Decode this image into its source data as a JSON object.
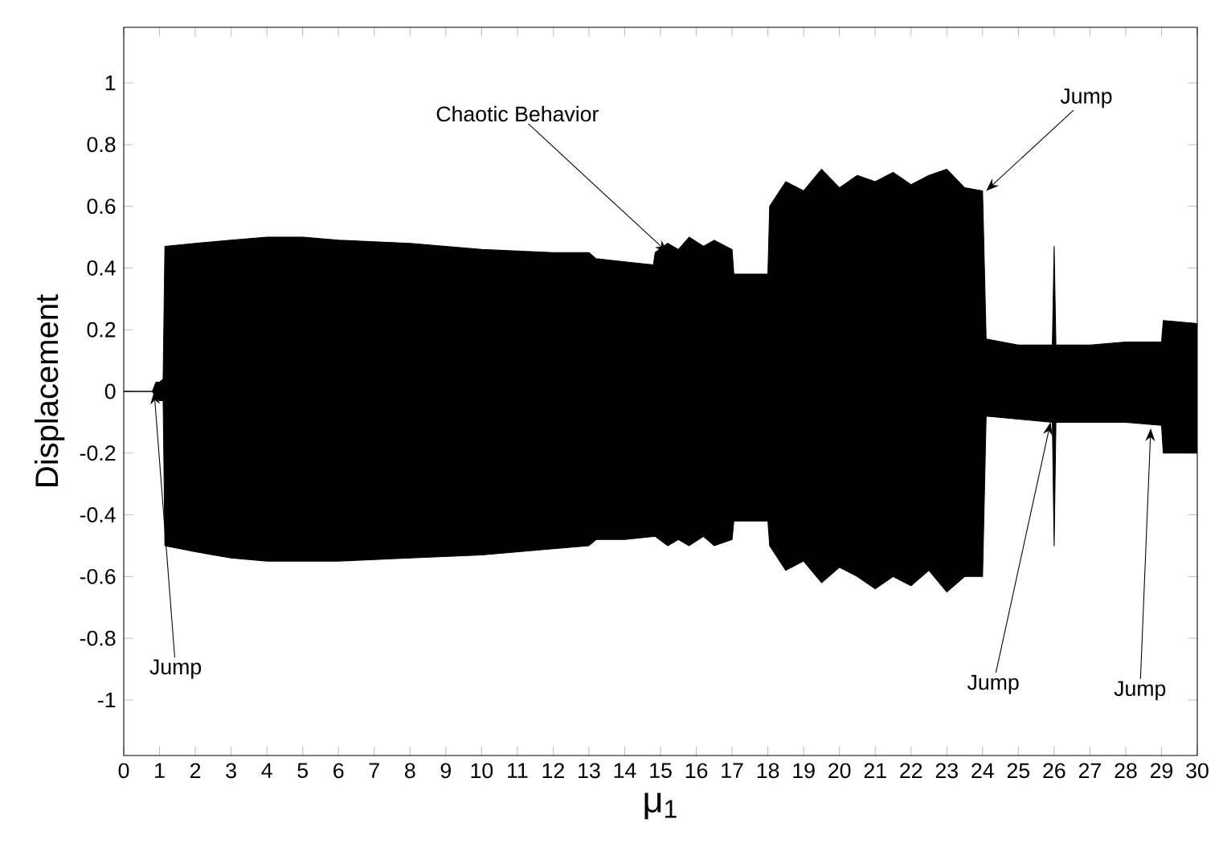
{
  "chart_data": {
    "type": "area",
    "xlabel": "μ$_{1}$",
    "ylabel": "Displacement",
    "xlim": [
      0,
      30
    ],
    "ylim": [
      -1.18,
      1.18
    ],
    "xticks": [
      0,
      1,
      2,
      3,
      4,
      5,
      6,
      7,
      8,
      9,
      10,
      11,
      12,
      13,
      14,
      15,
      16,
      17,
      18,
      19,
      20,
      21,
      22,
      23,
      24,
      25,
      26,
      27,
      28,
      29,
      30
    ],
    "yticks": [
      -1,
      -0.8,
      -0.6,
      -0.4,
      -0.2,
      0,
      0.2,
      0.4,
      0.6,
      0.8,
      1
    ],
    "grid": false,
    "series": [
      {
        "color": "#000000",
        "x": [
          0,
          0.8,
          0.9,
          1.0,
          1.1,
          1.15,
          2,
          3,
          4,
          5,
          6,
          8,
          10,
          12,
          13,
          13.2,
          14,
          14.8,
          14.85,
          15.2,
          15.5,
          15.8,
          16.2,
          16.5,
          17,
          17.05,
          18,
          18.05,
          18.5,
          19,
          19.5,
          20,
          20.5,
          21,
          21.5,
          22,
          22.5,
          23,
          23.5,
          24,
          24.1,
          25,
          25.95,
          26,
          26.05,
          27,
          28,
          29,
          29.05,
          30
        ],
        "values": [
          0,
          0,
          0.03,
          0.03,
          0.04,
          0.47,
          0.48,
          0.49,
          0.5,
          0.5,
          0.49,
          0.48,
          0.46,
          0.45,
          0.45,
          0.43,
          0.42,
          0.41,
          0.45,
          0.48,
          0.46,
          0.5,
          0.47,
          0.49,
          0.46,
          0.38,
          0.38,
          0.6,
          0.68,
          0.65,
          0.72,
          0.66,
          0.7,
          0.68,
          0.71,
          0.67,
          0.7,
          0.72,
          0.66,
          0.65,
          0.17,
          0.15,
          0.15,
          0.47,
          0.15,
          0.15,
          0.16,
          0.16,
          0.23,
          0.22
        ]
      },
      {
        "color": "#000000",
        "x": [
          0,
          0.8,
          0.9,
          1.0,
          1.1,
          1.15,
          2,
          3,
          4,
          5,
          6,
          8,
          10,
          12,
          13,
          13.2,
          14,
          14.8,
          14.85,
          15.2,
          15.5,
          15.8,
          16.2,
          16.5,
          17,
          17.05,
          18,
          18.05,
          18.5,
          19,
          19.5,
          20,
          20.5,
          21,
          21.5,
          22,
          22.5,
          23,
          23.5,
          24,
          24.1,
          25,
          25.95,
          26,
          26.05,
          27,
          28,
          29,
          29.05,
          30
        ],
        "values": [
          0,
          0,
          -0.02,
          -0.03,
          -0.03,
          -0.5,
          -0.52,
          -0.54,
          -0.55,
          -0.55,
          -0.55,
          -0.54,
          -0.53,
          -0.51,
          -0.5,
          -0.48,
          -0.48,
          -0.47,
          -0.47,
          -0.5,
          -0.48,
          -0.5,
          -0.47,
          -0.5,
          -0.48,
          -0.42,
          -0.42,
          -0.5,
          -0.58,
          -0.55,
          -0.62,
          -0.57,
          -0.6,
          -0.64,
          -0.6,
          -0.63,
          -0.58,
          -0.65,
          -0.6,
          -0.6,
          -0.08,
          -0.09,
          -0.1,
          -0.5,
          -0.1,
          -0.1,
          -0.1,
          -0.11,
          -0.2,
          -0.2
        ]
      }
    ],
    "annotations": [
      {
        "text": "Chaotic Behavior",
        "x": 15.2,
        "y": 0.45
      },
      {
        "text": "Jump",
        "x": 0.85,
        "y": 0.0
      },
      {
        "text": "Jump",
        "x": 24.1,
        "y": 0.65
      },
      {
        "text": "Jump",
        "x": 25.9,
        "y": -0.1
      },
      {
        "text": "Jump",
        "x": 28.7,
        "y": -0.12
      }
    ]
  }
}
